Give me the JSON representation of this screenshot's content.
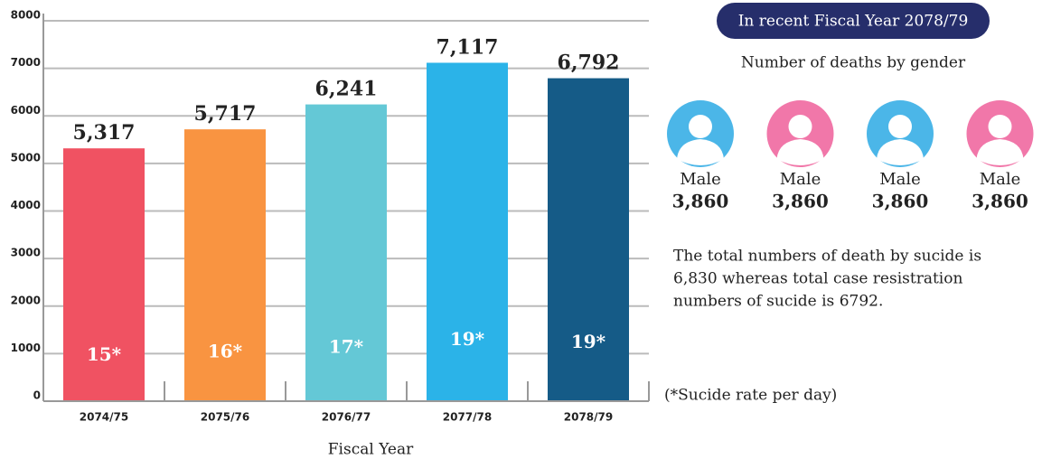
{
  "chart_data": {
    "type": "bar",
    "xlabel": "Fiscal Year",
    "categories": [
      "2074/75",
      "2075/76",
      "2076/77",
      "2077/78",
      "2078/79"
    ],
    "values": [
      5317,
      5717,
      6241,
      7117,
      6792
    ],
    "value_labels": [
      "5,317",
      "5,717",
      "6,241",
      "7,117",
      "6,792"
    ],
    "annotations": [
      "15*",
      "16*",
      "17*",
      "19*",
      "19*"
    ],
    "colors": [
      "#f05262",
      "#f99441",
      "#64c8d6",
      "#2bb3e8",
      "#155b87"
    ],
    "ylim": [
      0,
      8000
    ],
    "yticks": [
      0,
      1000,
      2000,
      3000,
      4000,
      5000,
      6000,
      7000,
      8000
    ],
    "grid": true
  },
  "side": {
    "badge": "In recent Fiscal Year 2078/79",
    "subtitle": "Number of deaths by gender",
    "people": [
      {
        "label": "Male",
        "value": "3,860",
        "color": "#4bb6e8"
      },
      {
        "label": "Male",
        "value": "3,860",
        "color": "#f177a9"
      },
      {
        "label": "Male",
        "value": "3,860",
        "color": "#4bb6e8"
      },
      {
        "label": "Male",
        "value": "3,860",
        "color": "#f177a9"
      }
    ],
    "note": [
      "The total numbers of death by sucide is",
      "6,830 whereas total case resistration",
      "numbers of sucide is 6792."
    ],
    "footnote": "(*Sucide rate per day)"
  }
}
